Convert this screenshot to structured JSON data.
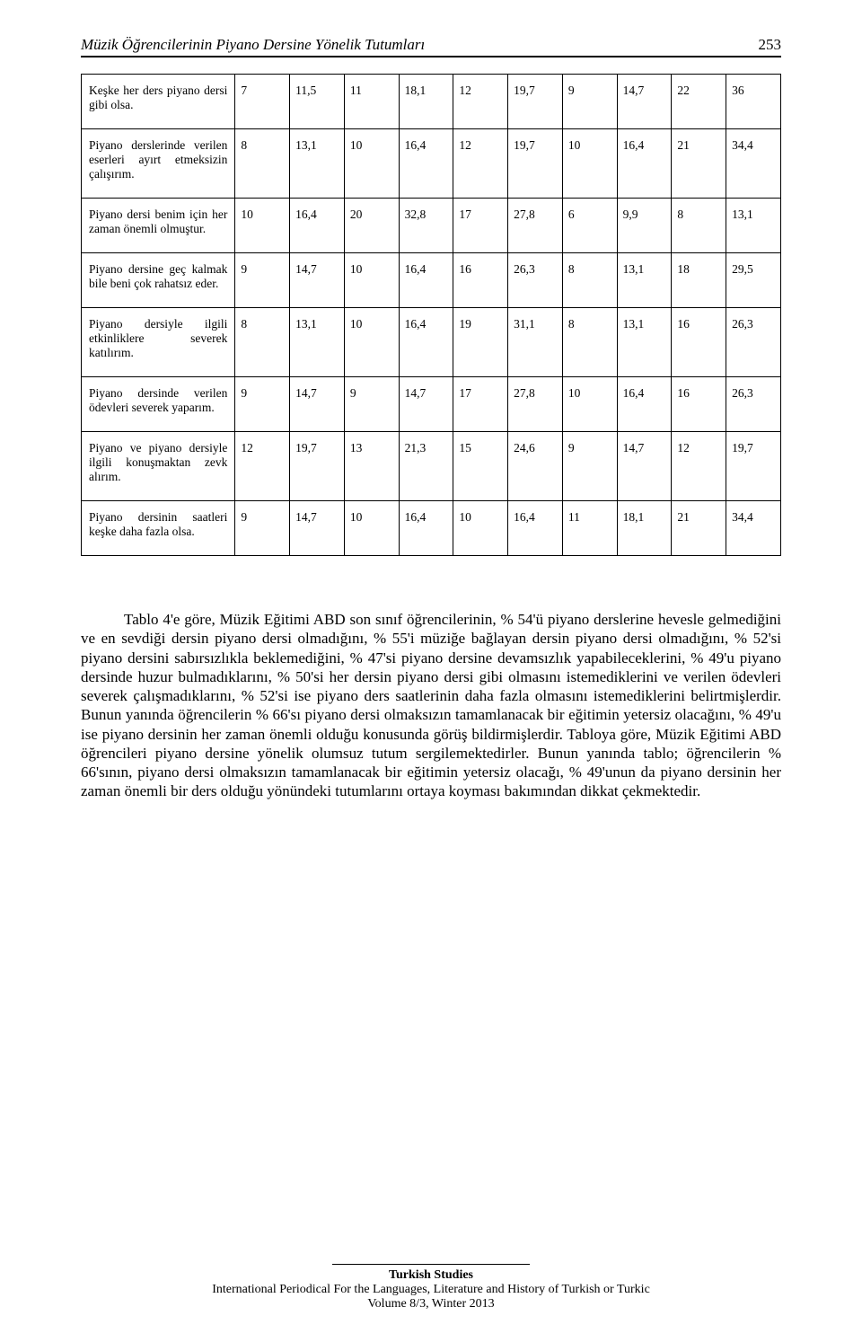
{
  "header": {
    "title": "Müzik Öğrencilerinin Piyano Dersine Yönelik Tutumları",
    "page_number": "253"
  },
  "table": {
    "type": "table",
    "label_fontsize": 13.5,
    "rows": [
      {
        "label": "Keşke her ders piyano dersi gibi olsa.",
        "cells": [
          "7",
          "11,5",
          "11",
          "18,1",
          "12",
          "19,7",
          "9",
          "14,7",
          "22",
          "36"
        ]
      },
      {
        "label": "Piyano derslerinde verilen eserleri ayırt etmeksizin çalışırım.",
        "cells": [
          "8",
          "13,1",
          "10",
          "16,4",
          "12",
          "19,7",
          "10",
          "16,4",
          "21",
          "34,4"
        ]
      },
      {
        "label": "Piyano dersi benim için her zaman önemli olmuştur.",
        "cells": [
          "10",
          "16,4",
          "20",
          "32,8",
          "17",
          "27,8",
          "6",
          "9,9",
          "8",
          "13,1"
        ]
      },
      {
        "label": "Piyano dersine geç kalmak bile beni çok rahatsız eder.",
        "cells": [
          "9",
          "14,7",
          "10",
          "16,4",
          "16",
          "26,3",
          "8",
          "13,1",
          "18",
          "29,5"
        ]
      },
      {
        "label": "Piyano dersiyle ilgili etkinliklere    severek katılırım.",
        "cells": [
          "8",
          "13,1",
          "10",
          "16,4",
          "19",
          "31,1",
          "8",
          "13,1",
          "16",
          "26,3"
        ]
      },
      {
        "label": "Piyano        dersinde verilen         ödevleri severek yaparım.",
        "cells": [
          "9",
          "14,7",
          "9",
          "14,7",
          "17",
          "27,8",
          "10",
          "16,4",
          "16",
          "26,3"
        ]
      },
      {
        "label": "Piyano   ve   piyano dersiyle           ilgili konuşmaktan    zevk alırım.",
        "cells": [
          "12",
          "19,7",
          "13",
          "21,3",
          "15",
          "24,6",
          "9",
          "14,7",
          "12",
          "19,7"
        ]
      },
      {
        "label": "Piyano        dersinin saatleri  keşke  daha fazla olsa.",
        "cells": [
          "9",
          "14,7",
          "10",
          "16,4",
          "10",
          "16,4",
          "11",
          "18,1",
          "21",
          "34,4"
        ]
      }
    ]
  },
  "paragraph": "Tablo 4'e göre, Müzik Eğitimi ABD son sınıf öğrencilerinin, % 54'ü piyano derslerine hevesle gelmediğini ve en sevdiği dersin piyano dersi olmadığını, % 55'i müziğe bağlayan dersin piyano dersi olmadığını, % 52'si piyano dersini sabırsızlıkla beklemediğini, % 47'si piyano dersine devamsızlık yapabileceklerini, % 49'u piyano dersinde huzur bulmadıklarını, % 50'si her dersin piyano dersi gibi olmasını istemediklerini ve verilen ödevleri severek çalışmadıklarını, % 52'si ise piyano ders saatlerinin daha fazla olmasını istemediklerini belirtmişlerdir. Bunun yanında öğrencilerin % 66'sı piyano dersi olmaksızın tamamlanacak bir eğitimin yetersiz olacağını, % 49'u ise piyano dersinin her zaman önemli olduğu konusunda görüş bildirmişlerdir. Tabloya göre, Müzik Eğitimi ABD öğrencileri piyano dersine yönelik olumsuz tutum sergilemektedirler. Bunun yanında tablo; öğrencilerin % 66'sının, piyano dersi olmaksızın tamamlanacak bir eğitimin yetersiz olacağı, % 49'unun da piyano dersinin her zaman önemli bir ders olduğu yönündeki tutumlarını ortaya koyması bakımından dikkat çekmektedir.",
  "footer": {
    "line1": "Turkish Studies",
    "line2": "International Periodical For the Languages, Literature and History of Turkish or Turkic",
    "line3": "Volume 8/3, Winter 2013"
  }
}
